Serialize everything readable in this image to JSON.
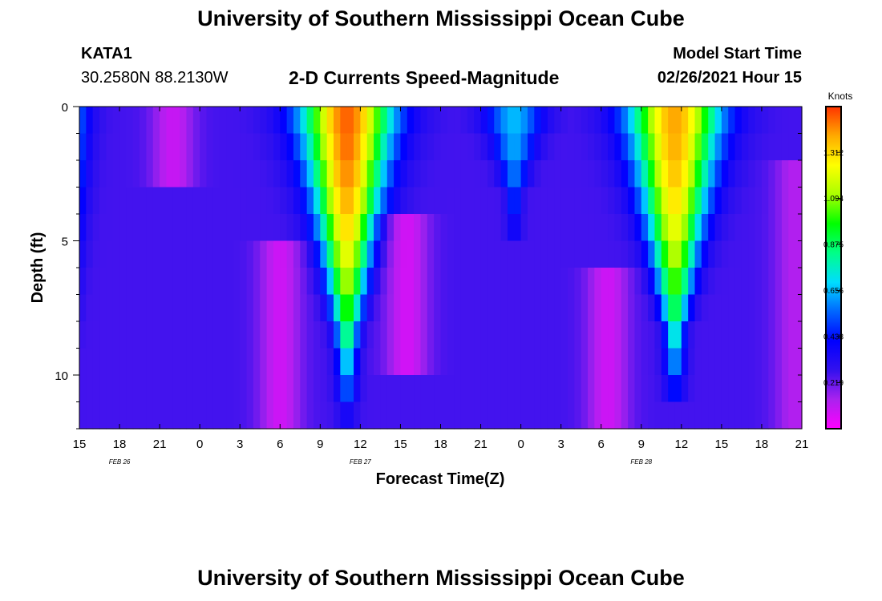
{
  "header": {
    "title": "University of Southern Mississippi Ocean Cube",
    "station": "KATA1",
    "coordinates": "30.2580N 88.2130W",
    "subtitle": "2-D Currents Speed-Magnitude",
    "model_start_label": "Model Start Time",
    "model_start_time": "02/26/2021 Hour 15"
  },
  "footer": {
    "title": "University of Southern Mississippi Ocean Cube"
  },
  "chart_data": {
    "type": "heatmap",
    "xlabel": "Forecast Time(Z)",
    "ylabel": "Depth (ft)",
    "x_tick_labels": [
      "15",
      "18",
      "21",
      "0",
      "3",
      "6",
      "9",
      "12",
      "15",
      "18",
      "21",
      "0",
      "3",
      "6",
      "9",
      "12",
      "15",
      "18",
      "21"
    ],
    "date_labels": [
      {
        "label": "FEB 26",
        "tick_index": 1
      },
      {
        "label": "FEB 27",
        "tick_index": 7
      },
      {
        "label": "FEB 28",
        "tick_index": 14
      }
    ],
    "x_range_hours": [
      0,
      54
    ],
    "y_ticks": [
      0,
      5,
      10
    ],
    "y_range": [
      0,
      12
    ],
    "y_inverted": true,
    "colorbar": {
      "title": "Knots",
      "range": [
        0,
        1.53
      ],
      "ticks": [
        0.219,
        0.438,
        0.656,
        0.875,
        1.094,
        1.312
      ],
      "colors": [
        "#ff00ff",
        "#aa22ee",
        "#3311ee",
        "#0000ff",
        "#0066ff",
        "#00ddff",
        "#00ff88",
        "#00ff00",
        "#aaff00",
        "#ffff00",
        "#ffaa00",
        "#ff3300"
      ]
    },
    "pulses": [
      {
        "center_hour": -1.0,
        "half_width_hours": 1.4,
        "peak_knots": 0.7,
        "depth_max_ft": 12
      },
      {
        "center_hour": 20.0,
        "half_width_hours": 3.2,
        "peak_knots": 1.48,
        "depth_max_ft": 10.5
      },
      {
        "center_hour": 32.5,
        "half_width_hours": 2.0,
        "peak_knots": 0.66,
        "depth_max_ft": 4
      },
      {
        "center_hour": 44.5,
        "half_width_hours": 3.2,
        "peak_knots": 1.4,
        "depth_max_ft": 10
      }
    ],
    "background_knots": 0.26,
    "low_speed_zones": [
      {
        "center_hour": 7.0,
        "depth_min_ft": 0,
        "depth_max_ft": 2,
        "min_knots": 0.06
      },
      {
        "center_hour": 15.0,
        "depth_min_ft": 6,
        "depth_max_ft": 12,
        "min_knots": 0.05
      },
      {
        "center_hour": 24.5,
        "depth_min_ft": 5,
        "depth_max_ft": 9,
        "min_knots": 0.04
      },
      {
        "center_hour": 39.5,
        "depth_min_ft": 7,
        "depth_max_ft": 12,
        "min_knots": 0.05
      },
      {
        "center_hour": 53.5,
        "depth_min_ft": 3,
        "depth_max_ft": 12,
        "min_knots": 0.1
      }
    ]
  }
}
